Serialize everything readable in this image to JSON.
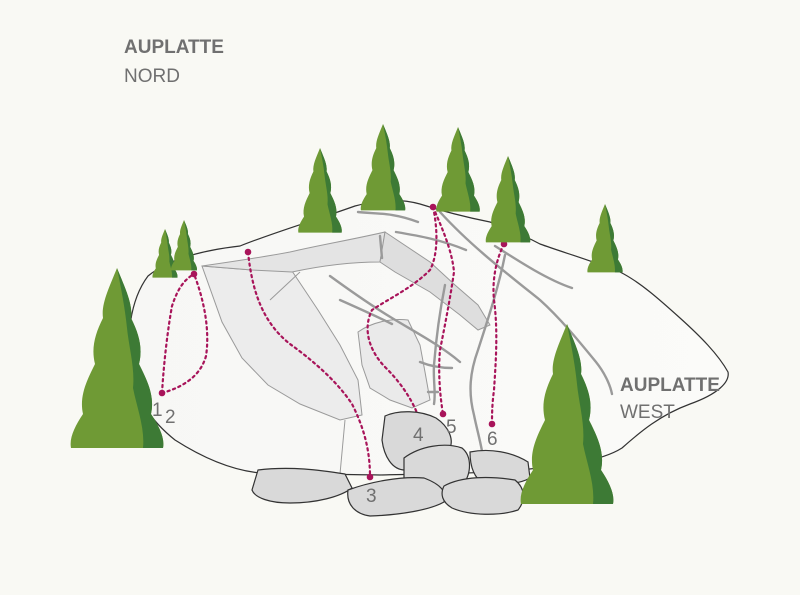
{
  "areas": {
    "north": {
      "title": "AUPLATTE",
      "subtitle": "NORD"
    },
    "west": {
      "title": "AUPLATTE",
      "subtitle": "WEST"
    }
  },
  "routes": [
    {
      "number": "1"
    },
    {
      "number": "2"
    },
    {
      "number": "3"
    },
    {
      "number": "4"
    },
    {
      "number": "5"
    },
    {
      "number": "6"
    }
  ],
  "colors": {
    "background": "#f9f9f4",
    "rock_face": "#f4f4f2",
    "route": "#a8145a",
    "tree_light": "#6f9a35",
    "tree_dark": "#3d7a35",
    "boulder": "#d9d9d9",
    "text": "#707070"
  }
}
